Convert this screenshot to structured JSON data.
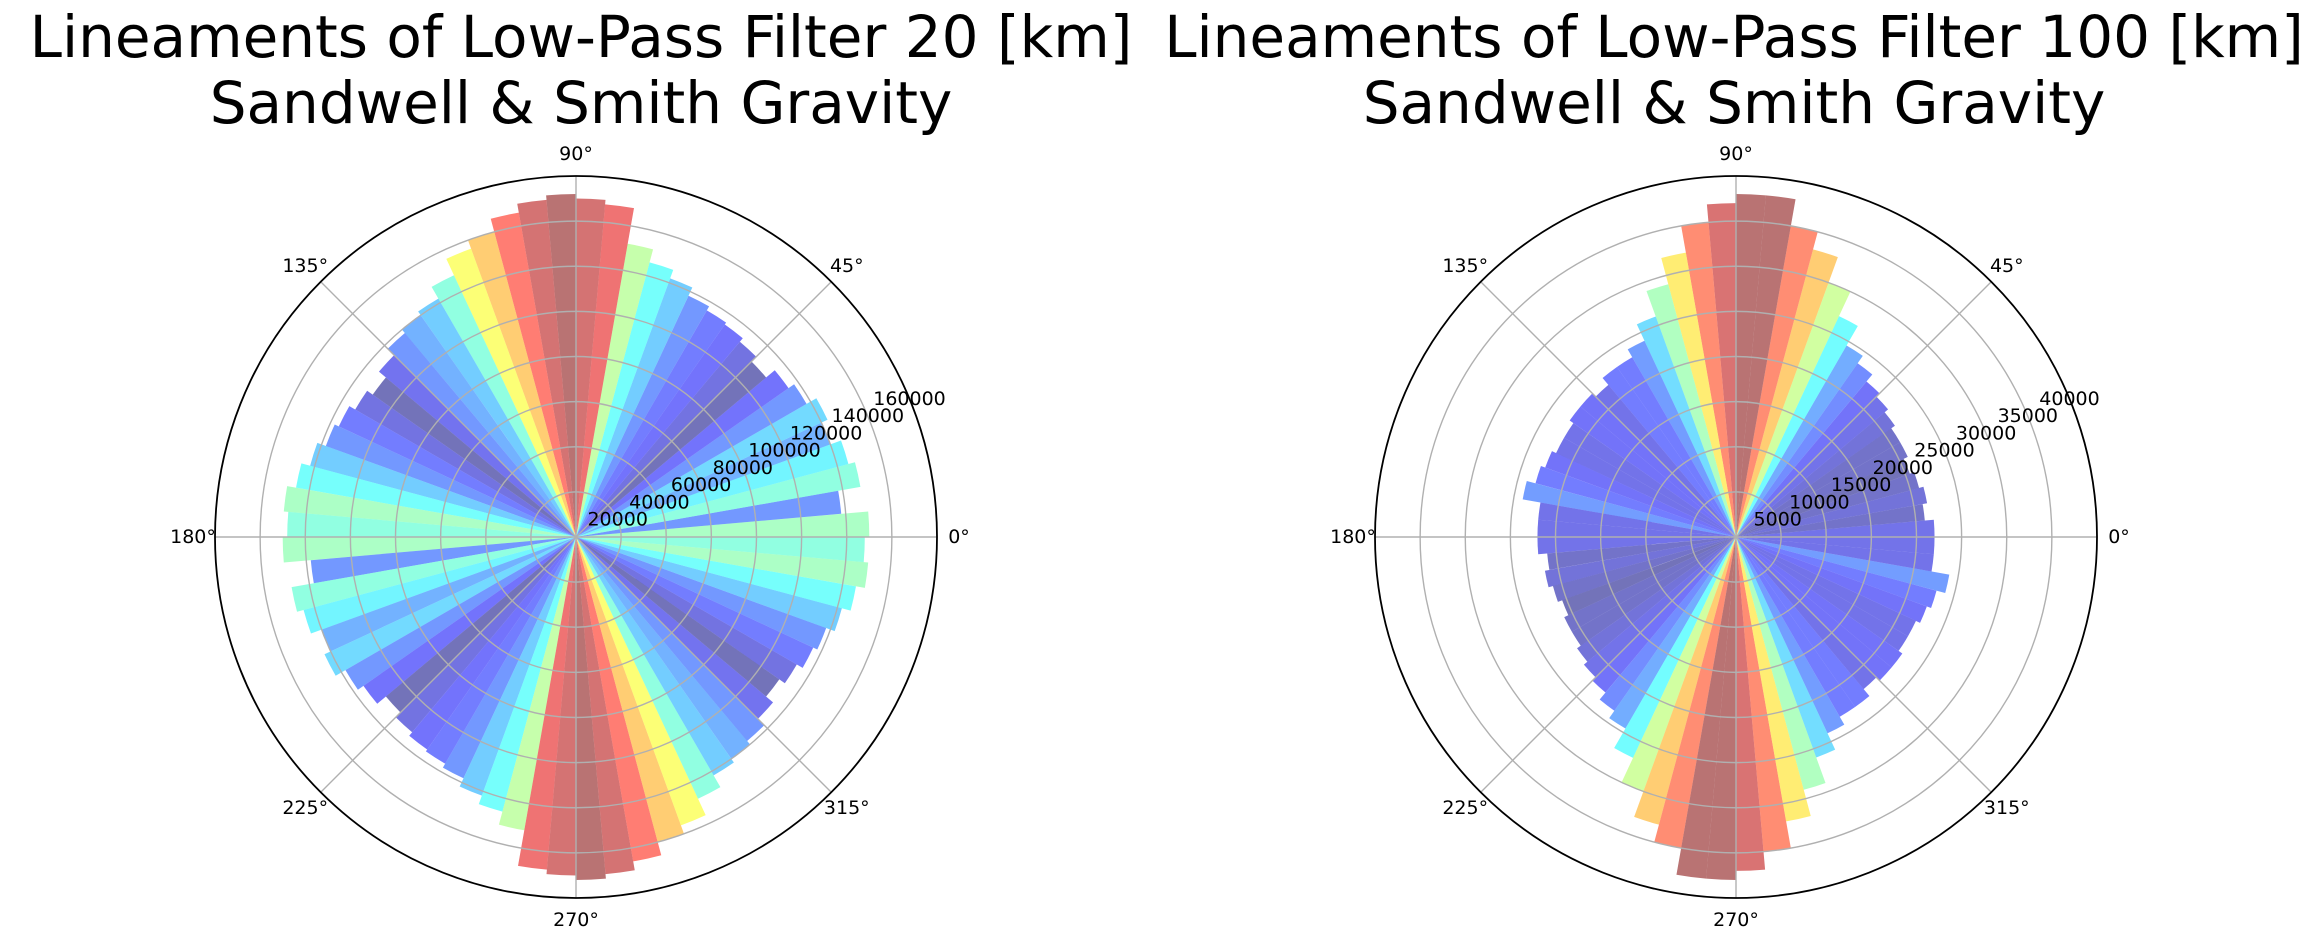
{
  "chart_data": [
    {
      "type": "polar-bar",
      "title": "Lineaments of Low-Pass Filter 20 [km]",
      "subtitle": "Sandwell & Smith Gravity",
      "theta_ticks": [
        "0°",
        "45°",
        "90°",
        "135°",
        "180°",
        "225°",
        "270°",
        "315°"
      ],
      "r_ticks": [
        "20000",
        "40000",
        "60000",
        "80000",
        "100000",
        "120000",
        "140000",
        "160000"
      ],
      "rlim": [
        0,
        160000
      ],
      "bin_width_deg": 5,
      "symmetric": true,
      "colormap": "jet",
      "grid": true,
      "bins_start_deg": [
        0,
        5,
        10,
        15,
        20,
        25,
        30,
        35,
        40,
        45,
        50,
        55,
        60,
        65,
        70,
        75,
        80,
        85,
        90,
        95,
        100,
        105,
        110,
        115,
        120,
        125,
        130,
        135,
        140,
        145,
        150,
        155,
        160,
        165,
        170,
        175
      ],
      "values": [
        130000,
        118000,
        128000,
        125000,
        120000,
        123000,
        118000,
        115000,
        110000,
        113000,
        115000,
        116000,
        118000,
        122000,
        126000,
        132000,
        148000,
        150000,
        152000,
        150000,
        146000,
        140000,
        136000,
        128000,
        122000,
        120000,
        118000,
        114000,
        110000,
        113000,
        116000,
        118000,
        122000,
        126000,
        130000,
        128000
      ]
    },
    {
      "type": "polar-bar",
      "title": "Lineaments of Low-Pass Filter 100 [km]",
      "subtitle": "Sandwell & Smith Gravity",
      "theta_ticks": [
        "0°",
        "45°",
        "90°",
        "135°",
        "180°",
        "225°",
        "270°",
        "315°"
      ],
      "r_ticks": [
        "5000",
        "10000",
        "15000",
        "20000",
        "25000",
        "30000",
        "35000",
        "40000"
      ],
      "rlim": [
        0,
        40000
      ],
      "bin_width_deg": 5,
      "symmetric": true,
      "colormap": "jet",
      "grid": true,
      "bins_start_deg": [
        0,
        5,
        10,
        15,
        20,
        25,
        30,
        35,
        40,
        45,
        50,
        55,
        60,
        65,
        70,
        75,
        80,
        85,
        90,
        95,
        100,
        105,
        110,
        115,
        120,
        125,
        130,
        135,
        140,
        145,
        150,
        155,
        160,
        165,
        170,
        175
      ],
      "values": [
        22000,
        21000,
        21500,
        21000,
        20500,
        21000,
        21000,
        21500,
        22000,
        22500,
        23500,
        24500,
        27000,
        30000,
        33000,
        35000,
        38000,
        38000,
        37000,
        35000,
        32000,
        29000,
        26000,
        24000,
        23000,
        23000,
        22000,
        22500,
        22500,
        22000,
        22000,
        22500,
        23000,
        24000,
        22000,
        22000
      ]
    }
  ]
}
